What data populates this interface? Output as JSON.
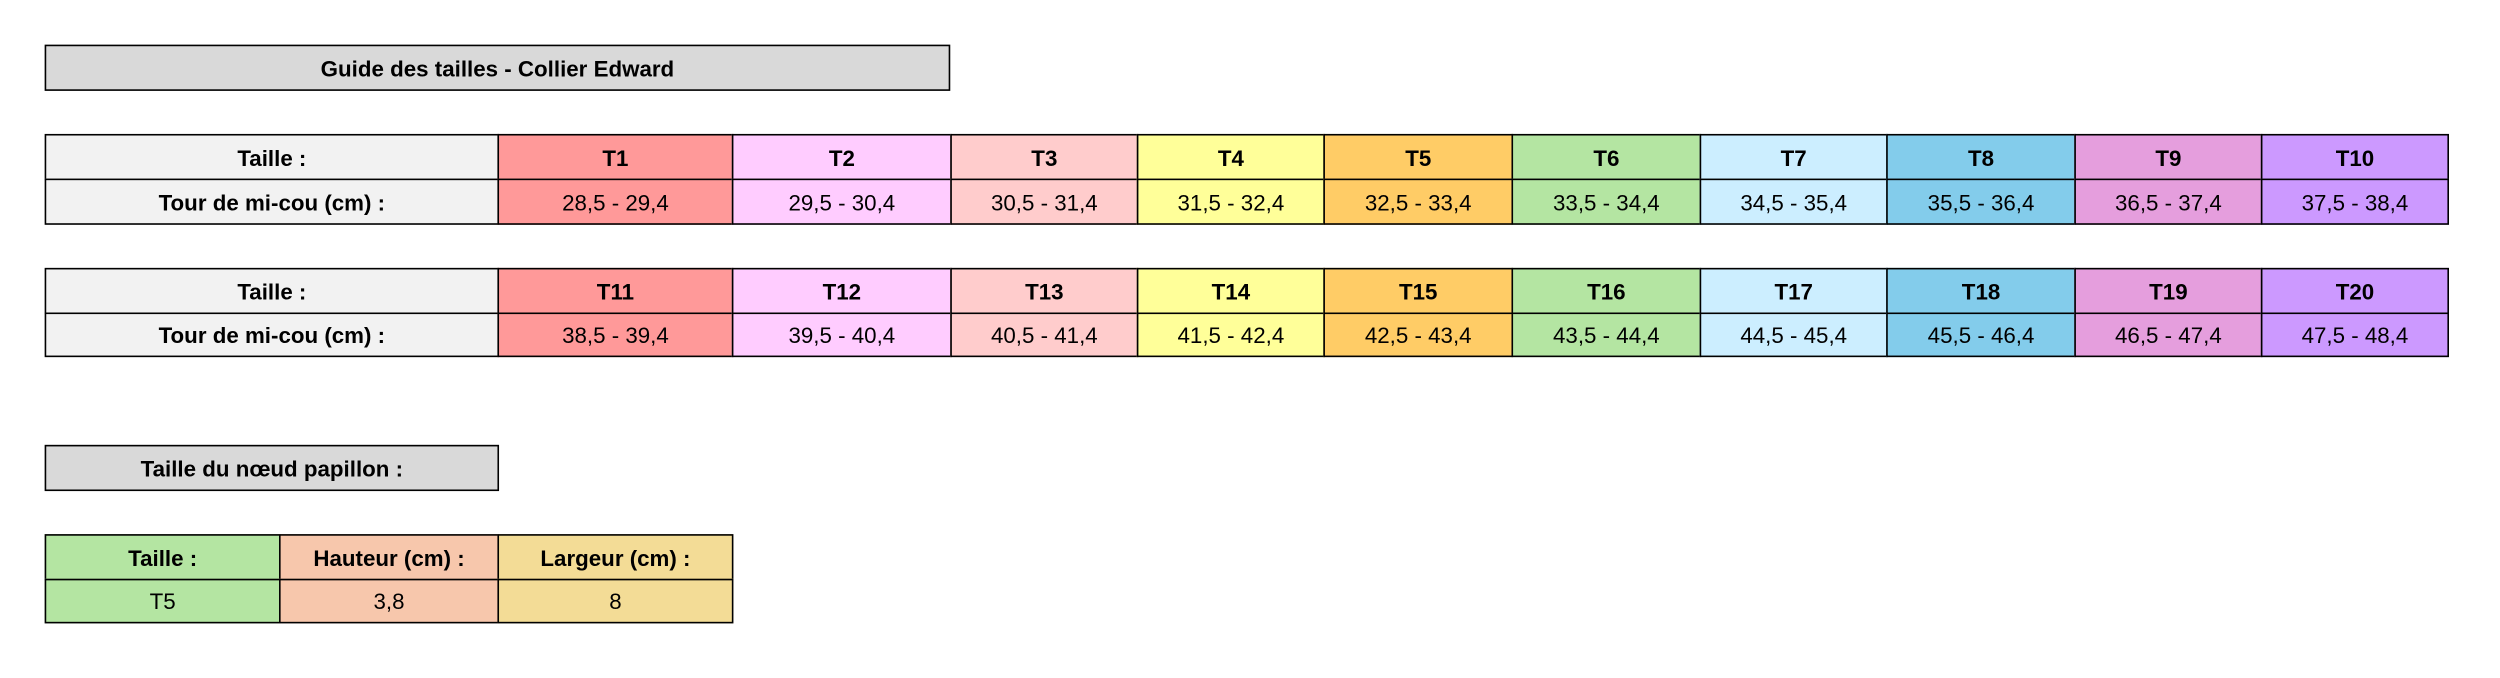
{
  "title": "Guide des tailles - Collier Edward",
  "tables": [
    {
      "header_label": "Taille :",
      "row_label": "Tour de mi-cou (cm) :",
      "sizes": [
        "T1",
        "T2",
        "T3",
        "T4",
        "T5",
        "T6",
        "T7",
        "T8",
        "T9",
        "T10"
      ],
      "ranges": [
        "28,5 - 29,4",
        "29,5 - 30,4",
        "30,5 - 31,4",
        "31,5 - 32,4",
        "32,5 - 33,4",
        "33,5 - 34,4",
        "34,5 - 35,4",
        "35,5 - 36,4",
        "36,5 - 37,4",
        "37,5 - 38,4"
      ]
    },
    {
      "header_label": "Taille :",
      "row_label": "Tour de mi-cou (cm) :",
      "sizes": [
        "T11",
        "T12",
        "T13",
        "T14",
        "T15",
        "T16",
        "T17",
        "T18",
        "T19",
        "T20"
      ],
      "ranges": [
        "38,5 - 39,4",
        "39,5 - 40,4",
        "40,5 - 41,4",
        "41,5 - 42,4",
        "42,5 - 43,4",
        "43,5 - 44,4",
        "44,5 - 45,4",
        "45,5 - 46,4",
        "46,5 - 47,4",
        "47,5 - 48,4"
      ]
    }
  ],
  "bow_tie": {
    "title": "Taille du nœud papillon :",
    "headers": [
      "Taille :",
      "Hauteur (cm) :",
      "Largeur (cm) :"
    ],
    "row": [
      "T5",
      "3,8",
      "8"
    ]
  }
}
